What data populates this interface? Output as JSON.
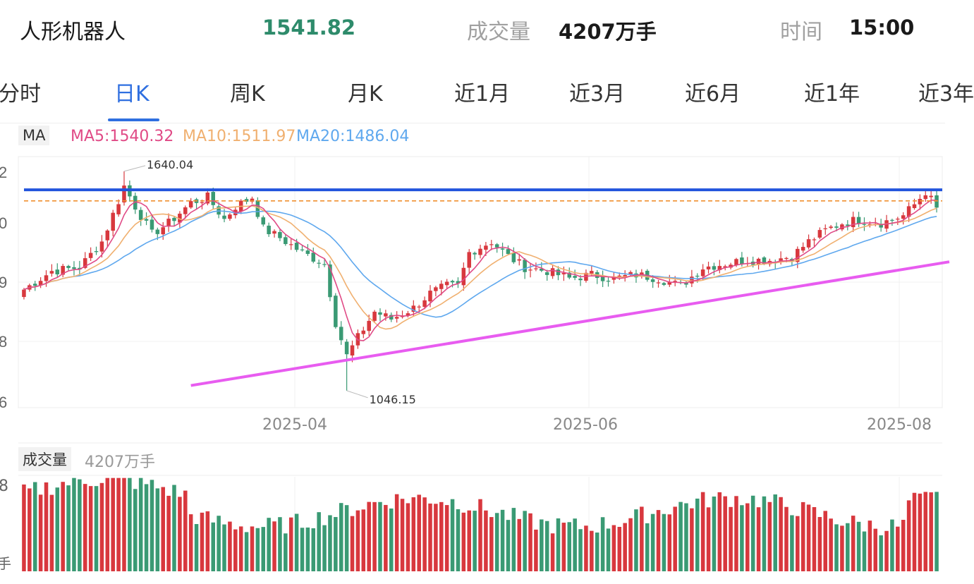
{
  "header": {
    "name": "人形机器人",
    "price": "1541.82",
    "volume_label": "成交量",
    "volume_value": "4207万手",
    "time_label": "时间",
    "time_value": "15:00"
  },
  "tabs": [
    {
      "label": "分时",
      "active": false
    },
    {
      "label": "日K",
      "active": true
    },
    {
      "label": "周K",
      "active": false
    },
    {
      "label": "月K",
      "active": false
    },
    {
      "label": "近1月",
      "active": false
    },
    {
      "label": "近3月",
      "active": false
    },
    {
      "label": "近6月",
      "active": false
    },
    {
      "label": "近1年",
      "active": false
    },
    {
      "label": "近3年",
      "active": false
    }
  ],
  "ma_legend": {
    "tag": "MA",
    "ma5": "MA5:1540.32",
    "ma10": "MA10:1511.97",
    "ma20": "MA20:1486.04"
  },
  "volume_legend": {
    "tag": "成交量",
    "value": "4207万手"
  },
  "colors": {
    "up": "#d8383e",
    "down": "#3a9a74",
    "ma5": "#e04a86",
    "ma10": "#f0b070",
    "ma20": "#5fa8ee",
    "resistance": "#2255dd",
    "support": "#e85cf0",
    "dashed": "#f09030"
  },
  "chart_data": {
    "type": "candlestick",
    "y_tick_labels": [
      "2",
      "0",
      "9",
      "8",
      "6"
    ],
    "x_tick_labels": [
      "2025-04",
      "2025-06",
      "2025-08"
    ],
    "ylim": [
      1000,
      1680
    ],
    "annotations": [
      {
        "label": "1640.04",
        "value": 1640.04,
        "index": 18
      },
      {
        "label": "1046.15",
        "value": 1046.15,
        "index": 58
      }
    ],
    "resistance_level": 1590,
    "dashed_level": 1560,
    "support_line": {
      "from": {
        "index": 30,
        "value": 1060
      },
      "to": {
        "index": 163,
        "value": 1395
      }
    },
    "volume_axis_labels": [
      "8",
      "手"
    ],
    "volume_range": [
      0,
      8
    ],
    "volume_unit": "手",
    "waypoints": [
      [
        0,
        1320
      ],
      [
        5,
        1370
      ],
      [
        10,
        1380
      ],
      [
        14,
        1450
      ],
      [
        17,
        1560
      ],
      [
        18,
        1600
      ],
      [
        20,
        1545
      ],
      [
        23,
        1470
      ],
      [
        26,
        1500
      ],
      [
        30,
        1555
      ],
      [
        33,
        1570
      ],
      [
        36,
        1510
      ],
      [
        38,
        1545
      ],
      [
        41,
        1570
      ],
      [
        43,
        1485
      ],
      [
        46,
        1460
      ],
      [
        50,
        1420
      ],
      [
        54,
        1390
      ],
      [
        56,
        1230
      ],
      [
        58,
        1140
      ],
      [
        60,
        1190
      ],
      [
        63,
        1260
      ],
      [
        66,
        1240
      ],
      [
        70,
        1270
      ],
      [
        73,
        1310
      ],
      [
        76,
        1330
      ],
      [
        78,
        1330
      ],
      [
        80,
        1420
      ],
      [
        84,
        1450
      ],
      [
        87,
        1410
      ],
      [
        90,
        1380
      ],
      [
        94,
        1370
      ],
      [
        98,
        1350
      ],
      [
        102,
        1360
      ],
      [
        106,
        1350
      ],
      [
        110,
        1360
      ],
      [
        114,
        1350
      ],
      [
        118,
        1330
      ],
      [
        122,
        1380
      ],
      [
        126,
        1390
      ],
      [
        130,
        1400
      ],
      [
        134,
        1400
      ],
      [
        138,
        1410
      ],
      [
        141,
        1450
      ],
      [
        144,
        1480
      ],
      [
        147,
        1500
      ],
      [
        150,
        1510
      ],
      [
        154,
        1500
      ],
      [
        158,
        1520
      ],
      [
        160,
        1550
      ],
      [
        162,
        1585
      ],
      [
        164,
        1541.82
      ]
    ]
  }
}
